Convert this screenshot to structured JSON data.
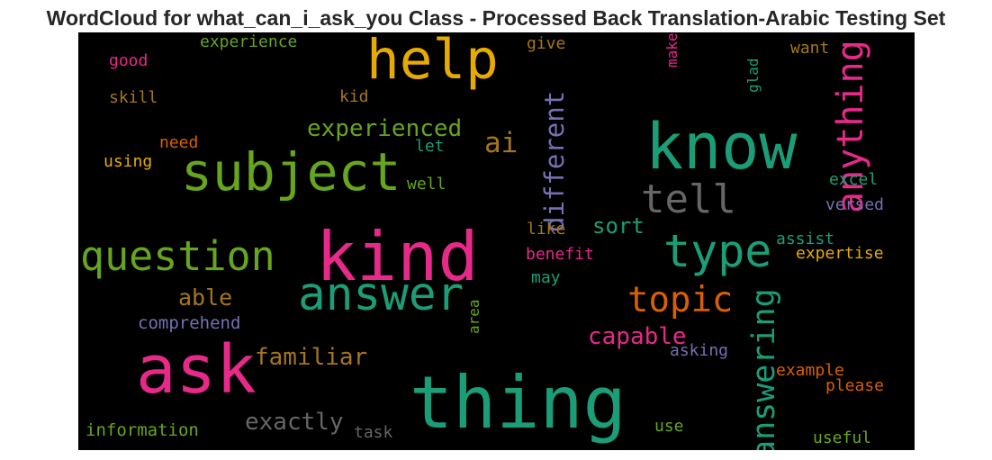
{
  "title": "WordCloud for what_can_i_ask_you Class - Processed Back Translation-Arabic Testing Set",
  "chart_data": {
    "type": "wordcloud",
    "title": "WordCloud for what_can_i_ask_you Class - Processed Back Translation-Arabic Testing Set",
    "background": "#000000",
    "palette": "Dark2",
    "words": [
      {
        "text": "thing",
        "weight": 100,
        "color": "#1b9e77",
        "vertical": false
      },
      {
        "text": "kind",
        "weight": 94,
        "color": "#e7298a",
        "vertical": false
      },
      {
        "text": "ask",
        "weight": 92,
        "color": "#e7298a",
        "vertical": false
      },
      {
        "text": "know",
        "weight": 88,
        "color": "#1b9e77",
        "vertical": false
      },
      {
        "text": "help",
        "weight": 76,
        "color": "#e6ab02",
        "vertical": false
      },
      {
        "text": "subject",
        "weight": 73,
        "color": "#66a61e",
        "vertical": false
      },
      {
        "text": "answer",
        "weight": 64,
        "color": "#1b9e77",
        "vertical": false
      },
      {
        "text": "type",
        "weight": 63,
        "color": "#1b9e77",
        "vertical": false
      },
      {
        "text": "question",
        "weight": 56,
        "color": "#66a61e",
        "vertical": false
      },
      {
        "text": "tell",
        "weight": 55,
        "color": "#666666",
        "vertical": false
      },
      {
        "text": "anything",
        "weight": 50,
        "color": "#e7298a",
        "vertical": true
      },
      {
        "text": "topic",
        "weight": 49,
        "color": "#d95f02",
        "vertical": false
      },
      {
        "text": "answering",
        "weight": 44,
        "color": "#1b9e77",
        "vertical": true
      },
      {
        "text": "ai",
        "weight": 39,
        "color": "#a6761d",
        "vertical": false
      },
      {
        "text": "different",
        "weight": 36,
        "color": "#7570b3",
        "vertical": true
      },
      {
        "text": "exactly",
        "weight": 33,
        "color": "#666666",
        "vertical": false
      },
      {
        "text": "experienced",
        "weight": 32,
        "color": "#66a61e",
        "vertical": false
      },
      {
        "text": "capable",
        "weight": 32,
        "color": "#e7298a",
        "vertical": false
      },
      {
        "text": "familiar",
        "weight": 32,
        "color": "#a6761d",
        "vertical": false
      },
      {
        "text": "able",
        "weight": 31,
        "color": "#a6761d",
        "vertical": false
      },
      {
        "text": "sort",
        "weight": 30,
        "color": "#1b9e77",
        "vertical": false
      },
      {
        "text": "comprehend",
        "weight": 24,
        "color": "#7570b3",
        "vertical": false
      },
      {
        "text": "information",
        "weight": 24,
        "color": "#66a61e",
        "vertical": false
      },
      {
        "text": "experience",
        "weight": 22,
        "color": "#66a61e",
        "vertical": false
      },
      {
        "text": "good",
        "weight": 22,
        "color": "#e7298a",
        "vertical": false
      },
      {
        "text": "skill",
        "weight": 22,
        "color": "#a6761d",
        "vertical": false
      },
      {
        "text": "kid",
        "weight": 22,
        "color": "#a6761d",
        "vertical": false
      },
      {
        "text": "give",
        "weight": 22,
        "color": "#a6761d",
        "vertical": false
      },
      {
        "text": "want",
        "weight": 22,
        "color": "#a6761d",
        "vertical": false
      },
      {
        "text": "need",
        "weight": 22,
        "color": "#d95f02",
        "vertical": false
      },
      {
        "text": "using",
        "weight": 22,
        "color": "#e6ab02",
        "vertical": false
      },
      {
        "text": "let",
        "weight": 22,
        "color": "#1b9e77",
        "vertical": false
      },
      {
        "text": "well",
        "weight": 22,
        "color": "#66a61e",
        "vertical": false
      },
      {
        "text": "excel",
        "weight": 22,
        "color": "#1b9e77",
        "vertical": false
      },
      {
        "text": "versed",
        "weight": 22,
        "color": "#7570b3",
        "vertical": false
      },
      {
        "text": "like",
        "weight": 22,
        "color": "#a6761d",
        "vertical": false
      },
      {
        "text": "benefit",
        "weight": 22,
        "color": "#e7298a",
        "vertical": false
      },
      {
        "text": "assist",
        "weight": 22,
        "color": "#1b9e77",
        "vertical": false
      },
      {
        "text": "expertise",
        "weight": 22,
        "color": "#e6ab02",
        "vertical": false
      },
      {
        "text": "may",
        "weight": 22,
        "color": "#1b9e77",
        "vertical": false
      },
      {
        "text": "asking",
        "weight": 22,
        "color": "#7570b3",
        "vertical": false
      },
      {
        "text": "example",
        "weight": 22,
        "color": "#d95f02",
        "vertical": false
      },
      {
        "text": "please",
        "weight": 22,
        "color": "#d95f02",
        "vertical": false
      },
      {
        "text": "use",
        "weight": 22,
        "color": "#66a61e",
        "vertical": false
      },
      {
        "text": "useful",
        "weight": 22,
        "color": "#66a61e",
        "vertical": false
      },
      {
        "text": "task",
        "weight": 22,
        "color": "#666666",
        "vertical": false
      },
      {
        "text": "make",
        "weight": 20,
        "color": "#e7298a",
        "vertical": true
      },
      {
        "text": "glad",
        "weight": 20,
        "color": "#1b9e77",
        "vertical": true
      },
      {
        "text": "area",
        "weight": 20,
        "color": "#66a61e",
        "vertical": true
      }
    ]
  }
}
